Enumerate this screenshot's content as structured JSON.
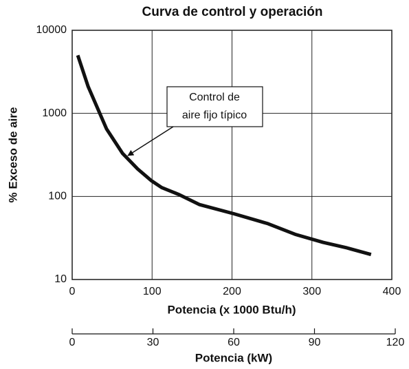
{
  "chart_data": {
    "type": "line",
    "title": "Curva de control y operación",
    "x_label": "Potencia (x 1000 Btu/h)",
    "y_label": "% Exceso de aire",
    "x2_label": "Potencia (kW)",
    "x": [
      7,
      20,
      43,
      63,
      82,
      99,
      112,
      133,
      159,
      202,
      245,
      279,
      314,
      344,
      374
    ],
    "values": [
      5000,
      2100,
      650,
      330,
      214,
      155,
      128,
      106,
      80,
      62,
      47,
      35,
      28,
      24,
      20
    ],
    "color": "#111111",
    "xlim": [
      0,
      400
    ],
    "xticks": [
      0,
      100,
      200,
      300,
      400
    ],
    "ylim": [
      10,
      10000
    ],
    "yticks": [
      10,
      100,
      1000,
      10000
    ],
    "log_y": true,
    "grid": true,
    "x2lim": [
      0,
      120
    ],
    "x2ticks": [
      0,
      30,
      60,
      90,
      120
    ],
    "annotation": [
      "Control de",
      "aire fijo típico"
    ]
  }
}
